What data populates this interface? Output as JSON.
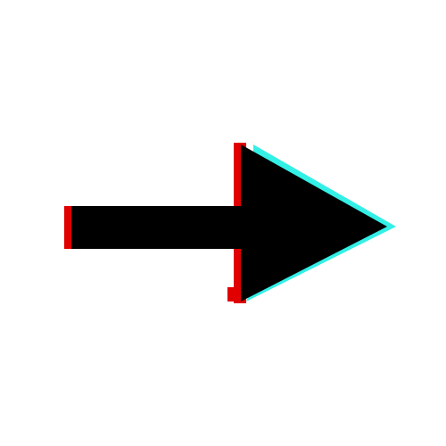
{
  "image": {
    "subject": "right-arrow-icon",
    "direction": "right",
    "effect": "chromatic-aberration-glitch"
  },
  "colors": {
    "background": "#ffffff",
    "arrow_fill": "#000000",
    "red_channel": "#e00000",
    "cyan_channel": "#33f0e6"
  }
}
